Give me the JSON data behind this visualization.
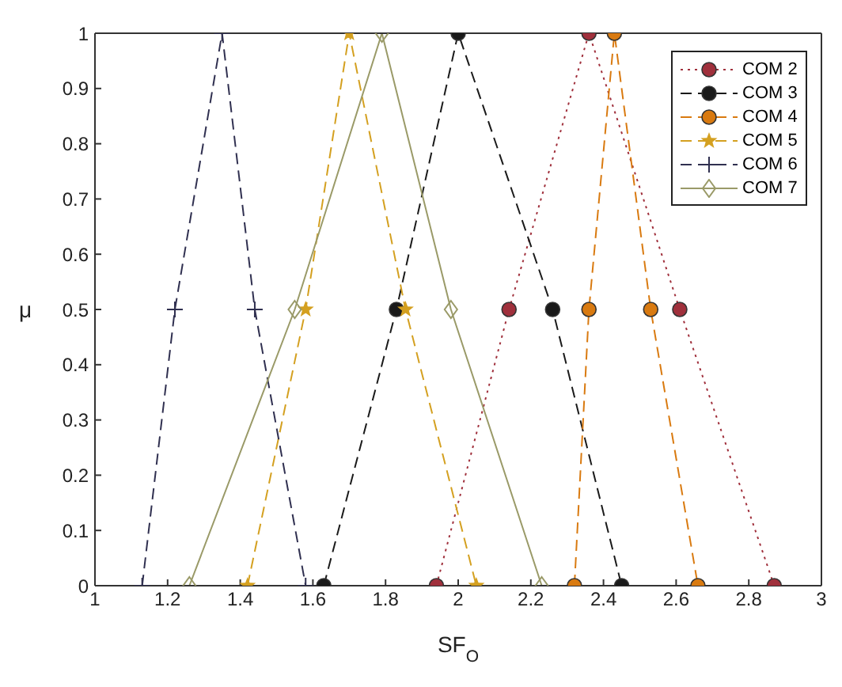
{
  "chart_data": {
    "type": "line",
    "xlabel": "SF$_{O}$",
    "ylabel": "μ",
    "xlim": [
      1,
      3
    ],
    "xticks": [
      1,
      1.2,
      1.4,
      1.6,
      1.8,
      2,
      2.2,
      2.4,
      2.6,
      2.8,
      3
    ],
    "ylim": [
      0,
      1
    ],
    "yticks": [
      0,
      0.1,
      0.2,
      0.3,
      0.4,
      0.5,
      0.6,
      0.7,
      0.8,
      0.9,
      1
    ],
    "legend": "top right",
    "series": [
      {
        "name": "COM 2",
        "color": "#a0303c",
        "marker": "circle",
        "line_style": "dotted",
        "x": [
          1.94,
          2.14,
          2.36,
          2.61,
          2.87
        ],
        "values": [
          0,
          0.5,
          1,
          0.5,
          0
        ]
      },
      {
        "name": "COM 3",
        "color": "#1a1a1a",
        "marker": "circle",
        "line_style": "dashed",
        "x": [
          1.63,
          1.83,
          2.0,
          2.26,
          2.45
        ],
        "values": [
          0,
          0.5,
          1,
          0.5,
          0
        ]
      },
      {
        "name": "COM 4",
        "color": "#d97a10",
        "marker": "circle",
        "line_style": "dashed",
        "x": [
          2.32,
          2.36,
          2.43,
          2.53,
          2.66
        ],
        "values": [
          0,
          0.5,
          1,
          0.5,
          0
        ]
      },
      {
        "name": "COM 5",
        "color": "#d4a020",
        "marker": "star",
        "line_style": "dashed",
        "x": [
          1.42,
          1.58,
          1.7,
          1.855,
          2.05
        ],
        "values": [
          0,
          0.5,
          1,
          0.5,
          0
        ]
      },
      {
        "name": "COM 6",
        "color": "#303050",
        "marker": "cross",
        "line_style": "dashed",
        "x": [
          1.13,
          1.22,
          1.35,
          1.44,
          1.58
        ],
        "values": [
          0,
          0.5,
          1,
          0.5,
          0
        ]
      },
      {
        "name": "COM 7",
        "color": "#9a9a68",
        "marker": "diamond",
        "line_style": "solid",
        "x": [
          1.26,
          1.55,
          1.79,
          1.98,
          2.23
        ],
        "values": [
          0,
          0.5,
          1,
          0.5,
          0
        ]
      }
    ]
  }
}
